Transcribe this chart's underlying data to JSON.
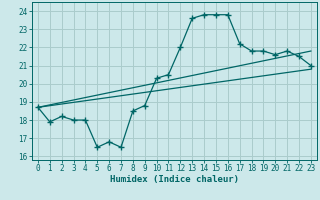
{
  "xlabel": "Humidex (Indice chaleur)",
  "bg_color": "#cce8ea",
  "grid_color": "#aacccc",
  "line_color": "#006666",
  "xlim": [
    -0.5,
    23.5
  ],
  "ylim": [
    15.8,
    24.5
  ],
  "yticks": [
    16,
    17,
    18,
    19,
    20,
    21,
    22,
    23,
    24
  ],
  "xticks": [
    0,
    1,
    2,
    3,
    4,
    5,
    6,
    7,
    8,
    9,
    10,
    11,
    12,
    13,
    14,
    15,
    16,
    17,
    18,
    19,
    20,
    21,
    22,
    23
  ],
  "series1_x": [
    0,
    1,
    2,
    3,
    4,
    5,
    6,
    7,
    8,
    9,
    10,
    11,
    12,
    13,
    14,
    15,
    16,
    17,
    18,
    19,
    20,
    21,
    22,
    23
  ],
  "series1_y": [
    18.7,
    17.9,
    18.2,
    18.0,
    18.0,
    16.5,
    16.8,
    16.5,
    18.5,
    18.8,
    20.3,
    20.5,
    22.0,
    23.6,
    23.8,
    23.8,
    23.8,
    22.2,
    21.8,
    21.8,
    21.6,
    21.8,
    21.5,
    21.0
  ],
  "series2_x": [
    0,
    23
  ],
  "series2_y": [
    18.7,
    21.8
  ],
  "series3_x": [
    0,
    23
  ],
  "series3_y": [
    18.7,
    20.8
  ]
}
